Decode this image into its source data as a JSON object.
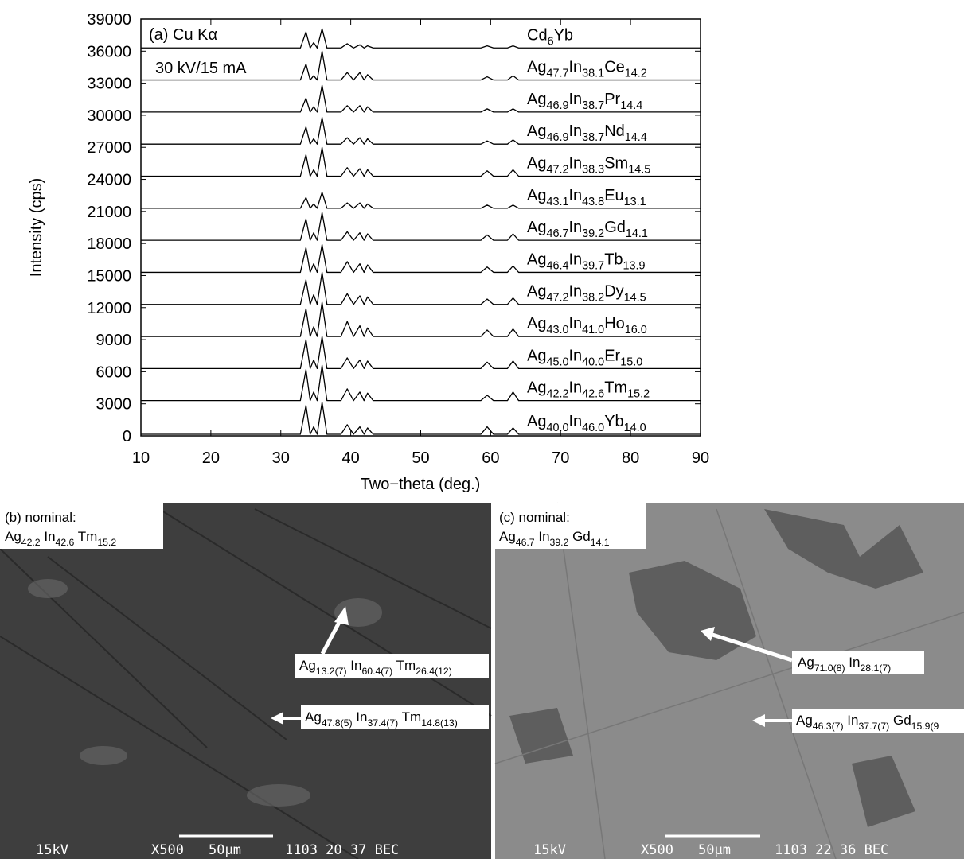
{
  "chart_data": {
    "type": "line",
    "annotations": [
      "(a) Cu Kα",
      "30 kV/15 mA"
    ],
    "xlabel": "Two−theta (deg.)",
    "ylabel": "Intensity (cps)",
    "x": [
      10,
      32.8,
      33.6,
      34.2,
      34.7,
      35.2,
      35.9,
      36.6,
      38.6,
      39.5,
      40.4,
      41.3,
      41.9,
      42.4,
      43.2,
      58.6,
      59.5,
      60.4,
      62.4,
      63.2,
      64.0,
      90
    ],
    "series": [
      {
        "name": "Cd6Yb",
        "color": "#000000",
        "values": [
          36300,
          36300,
          37800,
          36300,
          36800,
          36300,
          38100,
          36300,
          36300,
          36700,
          36300,
          36600,
          36300,
          36500,
          36300,
          36300,
          36500,
          36300,
          36300,
          36500,
          36300,
          36300
        ]
      },
      {
        "name": "Ag47.7In38.1Ce14.2",
        "color": "#000000",
        "values": [
          33300,
          33300,
          34800,
          33300,
          33700,
          33300,
          36000,
          33300,
          33300,
          34000,
          33300,
          34000,
          33300,
          33800,
          33300,
          33300,
          33600,
          33300,
          33300,
          33700,
          33300,
          33300
        ]
      },
      {
        "name": "Ag46.9In38.7Pr14.4",
        "color": "#000000",
        "values": [
          30300,
          30300,
          31600,
          30300,
          30800,
          30300,
          32800,
          30300,
          30300,
          30900,
          30300,
          30900,
          30300,
          30800,
          30300,
          30300,
          30600,
          30300,
          30300,
          30600,
          30300,
          30300
        ]
      },
      {
        "name": "Ag46.9In38.7Nd14.4",
        "color": "#000000",
        "values": [
          27300,
          27300,
          28900,
          27300,
          27800,
          27300,
          29800,
          27300,
          27300,
          27900,
          27300,
          27900,
          27300,
          27800,
          27300,
          27300,
          27600,
          27300,
          27300,
          27700,
          27300,
          27300
        ]
      },
      {
        "name": "Ag47.2In38.3Sm14.5",
        "color": "#000000",
        "values": [
          24300,
          24300,
          26300,
          24300,
          24900,
          24300,
          27000,
          24300,
          24300,
          25100,
          24300,
          25000,
          24300,
          24900,
          24300,
          24300,
          24800,
          24300,
          24300,
          24900,
          24300,
          24300
        ]
      },
      {
        "name": "Ag43.1In43.8Eu13.1",
        "color": "#000000",
        "values": [
          21300,
          21300,
          22300,
          21300,
          21700,
          21300,
          22800,
          21300,
          21300,
          21800,
          21300,
          21800,
          21300,
          21700,
          21300,
          21300,
          21600,
          21300,
          21300,
          21600,
          21300,
          21300
        ]
      },
      {
        "name": "Ag46.7In39.2Gd14.1",
        "color": "#000000",
        "values": [
          18300,
          18300,
          20300,
          18300,
          19000,
          18300,
          20900,
          18300,
          18300,
          19100,
          18300,
          19000,
          18300,
          18900,
          18300,
          18300,
          18800,
          18300,
          18300,
          18900,
          18300,
          18300
        ]
      },
      {
        "name": "Ag46.4In39.7Tb13.9",
        "color": "#000000",
        "values": [
          15300,
          15300,
          17600,
          15300,
          16100,
          15300,
          17900,
          15300,
          15300,
          16300,
          15300,
          16100,
          15300,
          16000,
          15300,
          15300,
          15800,
          15300,
          15300,
          15900,
          15300,
          15300
        ]
      },
      {
        "name": "Ag47.2In38.2Dy14.5",
        "color": "#000000",
        "values": [
          12300,
          12300,
          14600,
          12300,
          13200,
          12300,
          15300,
          12300,
          12300,
          13300,
          12300,
          13100,
          12300,
          13000,
          12300,
          12300,
          12800,
          12300,
          12300,
          12900,
          12300,
          12300
        ]
      },
      {
        "name": "Ag43.0In41.0Ho16.0",
        "color": "#000000",
        "values": [
          9300,
          9300,
          11900,
          9300,
          10200,
          9300,
          12500,
          9300,
          9300,
          10700,
          9300,
          10300,
          9300,
          10100,
          9300,
          9300,
          9900,
          9300,
          9300,
          10000,
          9300,
          9300
        ]
      },
      {
        "name": "Ag45.0In40.0Er15.0",
        "color": "#000000",
        "values": [
          6300,
          6300,
          9000,
          6300,
          7100,
          6300,
          9300,
          6300,
          6300,
          7300,
          6300,
          7100,
          6300,
          7000,
          6300,
          6300,
          6900,
          6300,
          6300,
          7000,
          6300,
          6300
        ]
      },
      {
        "name": "Ag42.2In42.6Tm15.2",
        "color": "#000000",
        "values": [
          3300,
          3300,
          6200,
          3300,
          4100,
          3300,
          6600,
          3300,
          3300,
          4400,
          3300,
          4100,
          3300,
          4000,
          3300,
          3300,
          3800,
          3300,
          3300,
          4100,
          3300,
          3300
        ]
      },
      {
        "name": "Ag40.0In46.0Yb14.0",
        "color": "#000000",
        "values": [
          150,
          150,
          2850,
          150,
          850,
          150,
          3150,
          150,
          150,
          1050,
          150,
          850,
          150,
          750,
          150,
          150,
          850,
          150,
          150,
          750,
          150,
          150
        ]
      }
    ],
    "xlim": [
      10,
      90
    ],
    "ylim": [
      0,
      39000
    ],
    "xticks": [
      10,
      20,
      30,
      40,
      50,
      60,
      70,
      80,
      90
    ],
    "yticks": [
      0,
      3000,
      6000,
      9000,
      12000,
      15000,
      18000,
      21000,
      24000,
      27000,
      30000,
      33000,
      36000,
      39000
    ]
  },
  "panels": [
    {
      "label": "(b) nominal:",
      "composition": "Ag42.2 In42.6 Tm15.2",
      "callouts": [
        "Ag13.2(7) In60.4(7) Tm26.4(12)",
        "Ag47.8(5) In37.4(7) Tm14.8(13)"
      ],
      "footer": [
        "15kV",
        "X500",
        "50µm",
        "1103 20 37 BEC"
      ]
    },
    {
      "label": "(c) nominal:",
      "composition": "Ag46.7 In39.2 Gd14.1",
      "callouts": [
        "Ag71.0(8) In28.1(7)",
        "Ag46.3(7) In37.7(7) Gd15.9(9"
      ],
      "footer": [
        "15kV",
        "X500",
        "50µm",
        "1103 22 36 BEC"
      ]
    }
  ]
}
